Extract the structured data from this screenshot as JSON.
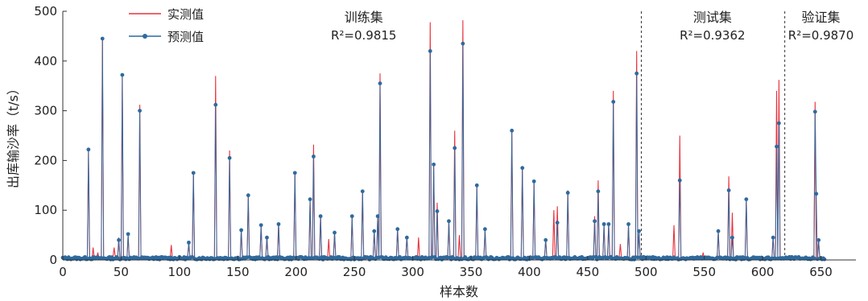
{
  "chart_data": {
    "type": "line",
    "xlabel": "样本数",
    "ylabel": "出库输沙率（t/s）",
    "xlim": [
      0,
      680
    ],
    "ylim": [
      0,
      500
    ],
    "x_ticks": [
      "0",
      "50",
      "100",
      "150",
      "200",
      "250",
      "300",
      "350",
      "400",
      "450",
      "500",
      "550",
      "600",
      "650"
    ],
    "y_ticks": [
      "0",
      "100",
      "200",
      "300",
      "400",
      "500"
    ],
    "series": [
      {
        "name": "实测值",
        "color": "#e8323c",
        "style": "line"
      },
      {
        "name": "预测值",
        "color": "#2d6a9f",
        "style": "line+markers"
      }
    ],
    "legend": {
      "placement": "top-left",
      "entries": [
        "实测值",
        "预测值"
      ]
    },
    "dividers": [
      496,
      619
    ],
    "annotations": [
      {
        "label": "训练集",
        "r2": "R²=0.9815",
        "x": 258
      },
      {
        "label": "测试集",
        "r2": "R²=0.9362",
        "x": 557
      },
      {
        "label": "验证集",
        "r2": "R²=0.9870",
        "x": 650
      }
    ],
    "peaks_observed": [
      [
        22,
        220
      ],
      [
        26,
        25
      ],
      [
        30,
        15
      ],
      [
        34,
        448
      ],
      [
        44,
        25
      ],
      [
        48,
        45
      ],
      [
        51,
        372
      ],
      [
        56,
        50
      ],
      [
        66,
        312
      ],
      [
        93,
        30
      ],
      [
        108,
        35
      ],
      [
        112,
        178
      ],
      [
        131,
        370
      ],
      [
        143,
        220
      ],
      [
        153,
        62
      ],
      [
        159,
        130
      ],
      [
        170,
        70
      ],
      [
        175,
        48
      ],
      [
        185,
        75
      ],
      [
        199,
        178
      ],
      [
        212,
        120
      ],
      [
        215,
        232
      ],
      [
        221,
        90
      ],
      [
        228,
        42
      ],
      [
        233,
        55
      ],
      [
        248,
        88
      ],
      [
        257,
        140
      ],
      [
        267,
        60
      ],
      [
        270,
        88
      ],
      [
        272,
        375
      ],
      [
        287,
        65
      ],
      [
        295,
        48
      ],
      [
        305,
        45
      ],
      [
        315,
        478
      ],
      [
        318,
        190
      ],
      [
        321,
        115
      ],
      [
        331,
        80
      ],
      [
        336,
        260
      ],
      [
        340,
        50
      ],
      [
        343,
        482
      ],
      [
        355,
        150
      ],
      [
        362,
        62
      ],
      [
        385,
        262
      ],
      [
        394,
        188
      ],
      [
        404,
        158
      ],
      [
        414,
        42
      ],
      [
        421,
        100
      ],
      [
        424,
        108
      ],
      [
        433,
        140
      ],
      [
        456,
        88
      ],
      [
        459,
        160
      ],
      [
        464,
        70
      ],
      [
        468,
        75
      ],
      [
        472,
        340
      ],
      [
        478,
        32
      ],
      [
        485,
        70
      ],
      [
        492,
        420
      ],
      [
        494,
        60
      ],
      [
        524,
        70
      ],
      [
        529,
        250
      ],
      [
        549,
        15
      ],
      [
        562,
        58
      ],
      [
        571,
        168
      ],
      [
        574,
        95
      ],
      [
        586,
        125
      ],
      [
        609,
        48
      ],
      [
        612,
        340
      ],
      [
        614,
        362
      ],
      [
        645,
        318
      ],
      [
        648,
        40
      ]
    ],
    "peaks_predicted": [
      [
        22,
        222
      ],
      [
        34,
        445
      ],
      [
        48,
        40
      ],
      [
        51,
        372
      ],
      [
        56,
        52
      ],
      [
        66,
        300
      ],
      [
        108,
        35
      ],
      [
        112,
        175
      ],
      [
        131,
        312
      ],
      [
        143,
        205
      ],
      [
        153,
        60
      ],
      [
        159,
        130
      ],
      [
        170,
        70
      ],
      [
        175,
        45
      ],
      [
        185,
        72
      ],
      [
        199,
        175
      ],
      [
        212,
        122
      ],
      [
        215,
        208
      ],
      [
        221,
        88
      ],
      [
        233,
        55
      ],
      [
        248,
        88
      ],
      [
        257,
        138
      ],
      [
        267,
        58
      ],
      [
        270,
        88
      ],
      [
        272,
        355
      ],
      [
        287,
        62
      ],
      [
        295,
        45
      ],
      [
        315,
        420
      ],
      [
        318,
        192
      ],
      [
        321,
        98
      ],
      [
        331,
        78
      ],
      [
        336,
        225
      ],
      [
        343,
        435
      ],
      [
        355,
        150
      ],
      [
        362,
        62
      ],
      [
        385,
        260
      ],
      [
        394,
        185
      ],
      [
        404,
        158
      ],
      [
        414,
        40
      ],
      [
        424,
        75
      ],
      [
        433,
        135
      ],
      [
        456,
        78
      ],
      [
        459,
        138
      ],
      [
        464,
        72
      ],
      [
        468,
        72
      ],
      [
        472,
        318
      ],
      [
        485,
        72
      ],
      [
        492,
        375
      ],
      [
        494,
        58
      ],
      [
        529,
        160
      ],
      [
        562,
        58
      ],
      [
        571,
        140
      ],
      [
        574,
        45
      ],
      [
        586,
        122
      ],
      [
        609,
        45
      ],
      [
        612,
        228
      ],
      [
        614,
        275
      ],
      [
        645,
        298
      ],
      [
        646,
        133
      ],
      [
        648,
        40
      ]
    ]
  }
}
